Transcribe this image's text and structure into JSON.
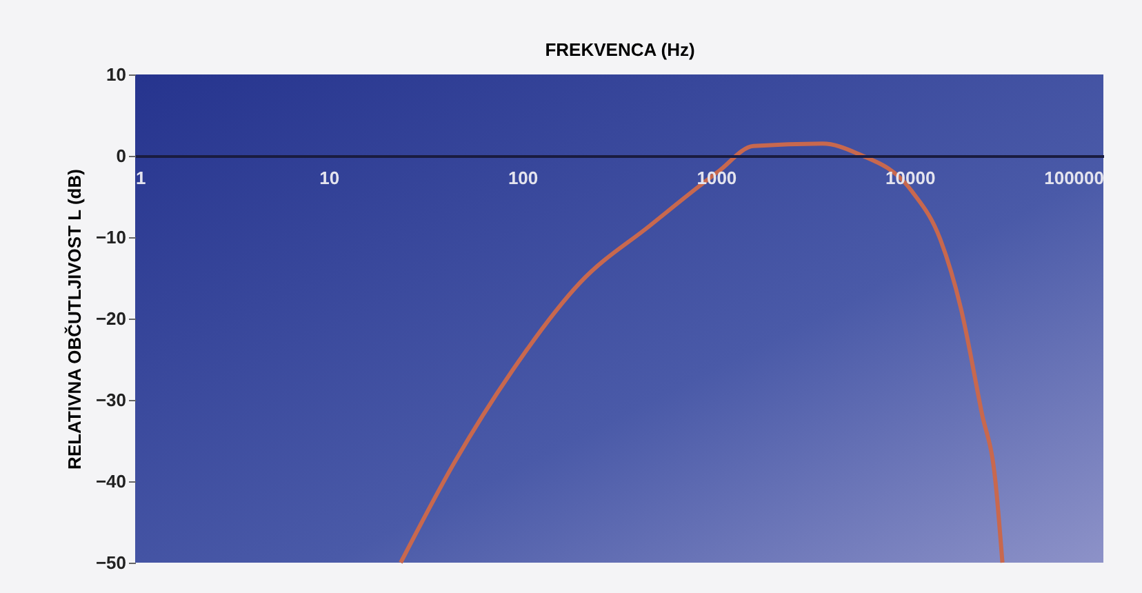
{
  "chart_data": {
    "type": "line",
    "xlabel": "FREKVENCA (Hz)",
    "ylabel": "RELATIVNA OBČUTLJIVOST L (dB)",
    "log": "x",
    "xlim": [
      1,
      100000
    ],
    "xticks": [
      1,
      10,
      100,
      1000,
      10000,
      100000
    ],
    "ylim": [
      -50,
      10
    ],
    "yticks": [
      10,
      0,
      -10,
      -20,
      -30,
      -40,
      -50
    ],
    "grid": false,
    "series": [
      {
        "color": "#c8684e",
        "x": [
          23.5,
          45,
          88,
          200,
          454,
          1030,
          1560,
          3550,
          5350,
          10300,
          14400,
          18400,
          23500,
          27700,
          30100
        ],
        "values": [
          -50,
          -37.5,
          -26.5,
          -15.5,
          -8.6,
          -1.9,
          1.2,
          1.5,
          0.3,
          -4.4,
          -10.3,
          -18.8,
          -31.5,
          -40,
          -50
        ]
      }
    ]
  }
}
